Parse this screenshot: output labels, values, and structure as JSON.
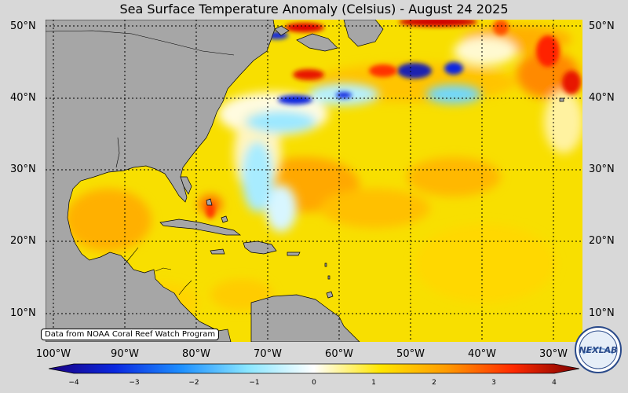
{
  "title": "Sea Surface Temperature Anomaly (Celsius) - August 24 2025",
  "lat_labels": [
    "50°N",
    "40°N",
    "30°N",
    "20°N",
    "10°N"
  ],
  "lon_labels": [
    "100°W",
    "90°W",
    "80°W",
    "70°W",
    "60°W",
    "50°W",
    "40°W",
    "30°W"
  ],
  "credit": "Data from NOAA Coral Reef Watch Program",
  "colorbar": {
    "ticks": [
      "−4",
      "−3",
      "−2",
      "−1",
      "0",
      "1",
      "2",
      "3",
      "4"
    ],
    "colors": [
      "#1a0080",
      "#0a28e0",
      "#1e90ff",
      "#8ae6ff",
      "#ffffff",
      "#ffe600",
      "#ff9a00",
      "#ff2a00",
      "#7a0000"
    ]
  },
  "logo_text": "NEXLAB",
  "colors": {
    "land": "#a6a6a6",
    "ocean_base": "#f7e000",
    "warm": "#ff9a00",
    "hot": "#ff2a00",
    "cold": "#0a28e0",
    "cool": "#8ae6ff"
  }
}
